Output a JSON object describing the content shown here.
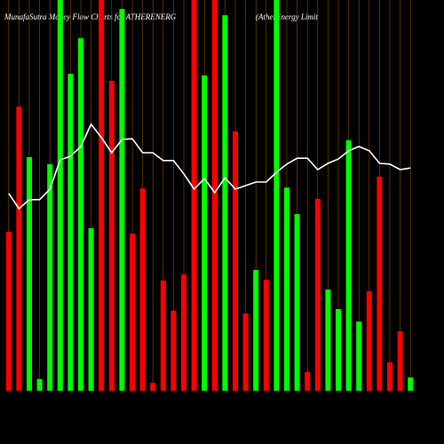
{
  "chart_data": {
    "type": "bar",
    "title": "MunafaSutra Money Flow Charts for ATHERENERG",
    "subtitle": "(AtherEnergy Limit",
    "categories": [
      null,
      null,
      null,
      null,
      null,
      null,
      null,
      null,
      null,
      null,
      null,
      null,
      null,
      null,
      null,
      null,
      null,
      null,
      null,
      null,
      null,
      null,
      null,
      null,
      null,
      null,
      null,
      null,
      null,
      null,
      null,
      null,
      null,
      null,
      null,
      null,
      null,
      null,
      null,
      null
    ],
    "values": [
      40.7,
      72.7,
      59.8,
      3.0,
      58.0,
      100,
      81.1,
      90.2,
      41.6,
      100,
      79.3,
      97.7,
      40.2,
      51.8,
      2.0,
      28.2,
      20.5,
      29.8,
      100,
      80.7,
      100,
      96.1,
      66.4,
      19.8,
      30.9,
      28.4,
      100,
      52.0,
      45.2,
      4.8,
      49.1,
      25.9,
      20.9,
      64.1,
      17.7,
      25.5,
      54.8,
      7.3,
      15.2,
      3.4
    ],
    "colors": [
      "#ff0000",
      "#ff0000",
      "#00ff00",
      "#00ff00",
      "#00ff00",
      "#00ff00",
      "#00ff00",
      "#00ff00",
      "#00ff00",
      "#ff0000",
      "#ff0000",
      "#00ff00",
      "#ff0000",
      "#ff0000",
      "#ff0000",
      "#ff0000",
      "#ff0000",
      "#ff0000",
      "#ff0000",
      "#00ff00",
      "#ff0000",
      "#00ff00",
      "#ff0000",
      "#ff0000",
      "#00ff00",
      "#ff0000",
      "#00ff00",
      "#00ff00",
      "#00ff00",
      "#ff0000",
      "#ff0000",
      "#00ff00",
      "#00ff00",
      "#00ff00",
      "#00ff00",
      "#ff0000",
      "#ff0000",
      "#ff0000",
      "#ff0000",
      "#00ff00"
    ],
    "line_values": [
      50.5,
      46.6,
      48.9,
      48.9,
      51.6,
      59.1,
      60,
      62.5,
      68.2,
      64.8,
      60.9,
      64.3,
      64.5,
      60.9,
      60.9,
      58.9,
      58.9,
      55.5,
      51.6,
      54.3,
      50.7,
      54.5,
      51.6,
      52.5,
      53.4,
      53.4,
      55.9,
      58,
      59.5,
      59.5,
      56.6,
      58.2,
      59.3,
      61.4,
      62.5,
      61.4,
      58.2,
      58,
      56.6,
      57
    ],
    "line_color": "#ffffff",
    "grid_color": "#8a4a00",
    "ylim": [
      0,
      100
    ]
  }
}
